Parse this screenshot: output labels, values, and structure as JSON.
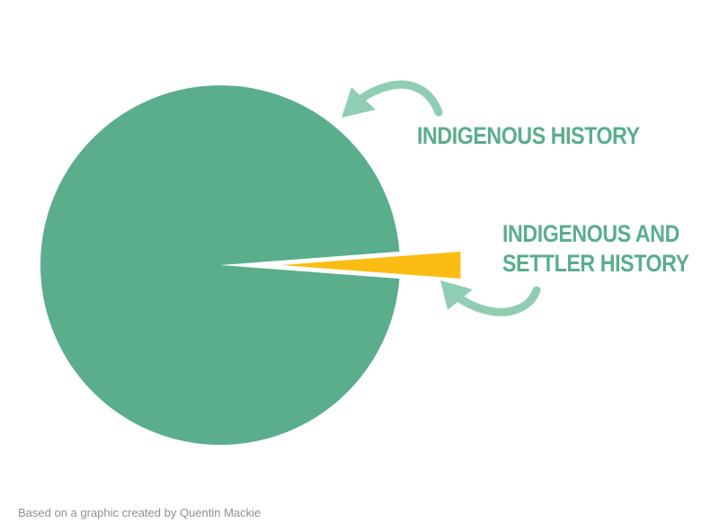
{
  "chart_data": {
    "type": "pie",
    "slices": [
      {
        "label": "INDIGENOUS HISTORY",
        "value": 97.6,
        "color": "#5aae8c"
      },
      {
        "label": "INDIGENOUS AND SETTLER HISTORY",
        "value": 2.4,
        "color": "#fbbd13",
        "exploded": true
      }
    ],
    "labels": {
      "major": "INDIGENOUS HISTORY",
      "minor_line1": "INDIGENOUS AND",
      "minor_line2": "SETTLER HISTORY"
    },
    "arrow_color": "#8fceb2",
    "legend": "none"
  },
  "credit": "Based on a graphic created by Quentin Mackie"
}
